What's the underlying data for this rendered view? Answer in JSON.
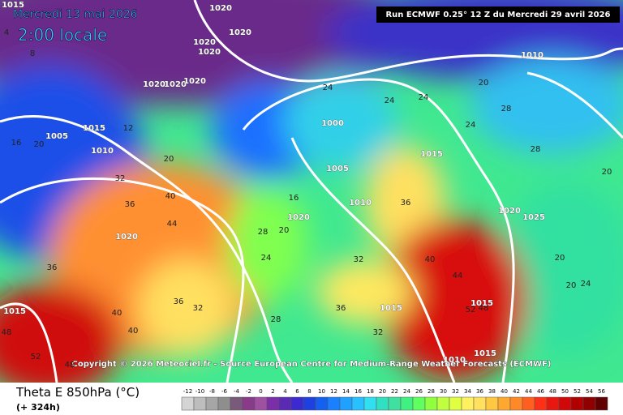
{
  "header": {
    "date": "Mercredi 13 mai 2026",
    "time": "2:00 locale",
    "run": "Run ECMWF 0.25° 12 Z du Mercredi 29 avril 2026"
  },
  "copyright": "Copyright © 2026 Meteociel.fr - Source European Centre for Medium-Range Weather Forecasts (ECMWF)",
  "footer": {
    "title": "Theta E 850hPa (°C)",
    "lead": "(+ 324h)"
  },
  "isobar_labels": [
    1015,
    1020,
    1020,
    1020,
    1020,
    1010,
    1020,
    1020,
    1020,
    1005,
    1010,
    1015,
    1000,
    1015,
    1005,
    1010,
    1020,
    1020,
    1020,
    1025,
    1015,
    1015,
    1015,
    1015,
    1010
  ],
  "theta_labels": [
    4,
    8,
    12,
    16,
    20,
    24,
    24,
    24,
    28,
    20,
    24,
    28,
    20,
    32,
    36,
    40,
    44,
    36,
    40,
    36,
    32,
    48,
    52,
    48,
    28,
    24,
    20,
    16,
    32,
    36,
    40,
    44,
    48,
    52,
    20,
    20,
    20,
    24,
    36,
    32,
    40,
    28
  ],
  "colorbar": {
    "ticks": [
      -12,
      -10,
      -8,
      -6,
      -4,
      -2,
      0,
      2,
      4,
      6,
      8,
      10,
      12,
      14,
      16,
      18,
      20,
      22,
      24,
      26,
      28,
      30,
      32,
      34,
      36,
      38,
      40,
      42,
      44,
      46,
      48,
      50,
      52,
      54,
      56
    ],
    "colors": [
      "#d4d4d4",
      "#bdbdbd",
      "#a6a6a6",
      "#8e8e8e",
      "#7a5a7a",
      "#8a3a8a",
      "#a050a0",
      "#7a2ea8",
      "#5a2ab4",
      "#3a2ad0",
      "#1e40e0",
      "#1460f0",
      "#1a80ff",
      "#20a0ff",
      "#28c0ff",
      "#30e0f0",
      "#30e0c0",
      "#40e0a0",
      "#40f080",
      "#60ff60",
      "#90ff40",
      "#c0ff40",
      "#e0ff40",
      "#fff060",
      "#ffe060",
      "#ffc840",
      "#ffa830",
      "#ff8828",
      "#ff6020",
      "#ff3018",
      "#e81810",
      "#d00808",
      "#b00000",
      "#900000",
      "#600000"
    ]
  }
}
